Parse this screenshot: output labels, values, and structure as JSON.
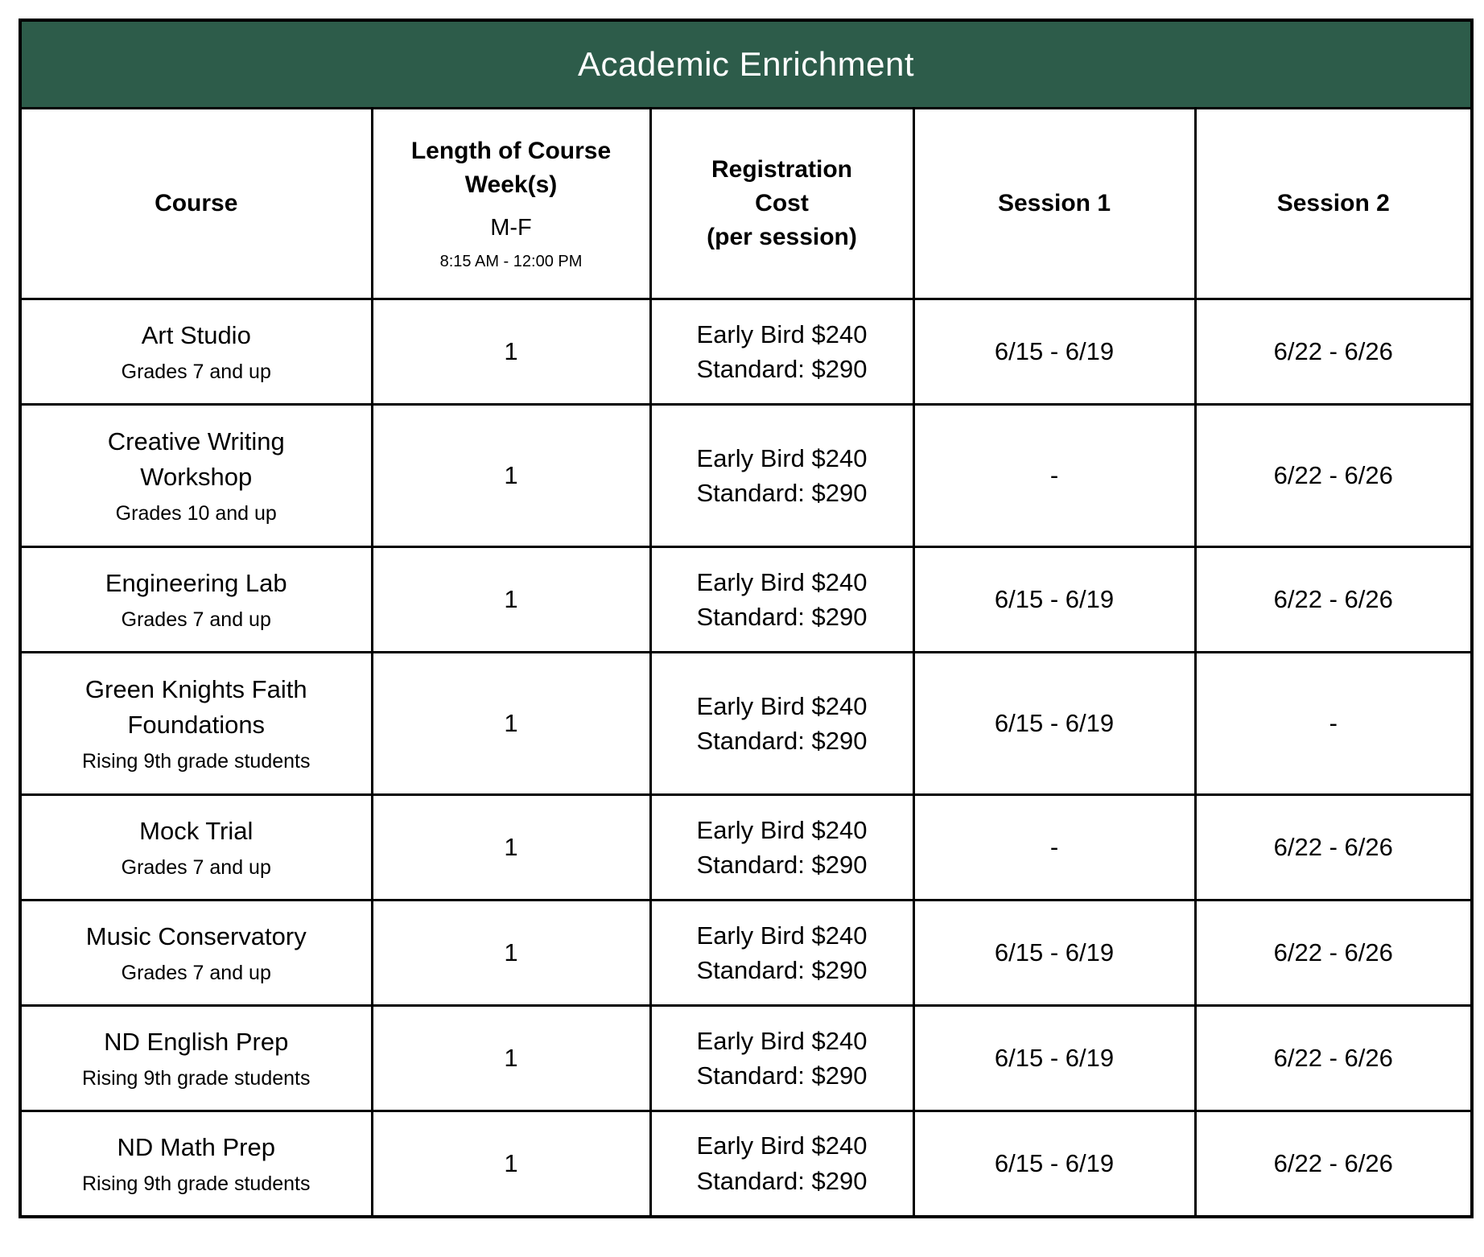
{
  "title_bar": {
    "text": "Academic Enrichment"
  },
  "colors": {
    "title_bg": "#2D5C4A",
    "title_text": "#FFFFFF",
    "border": "#000000",
    "text": "#000000",
    "cell_bg": "#FFFFFF"
  },
  "header": {
    "course": {
      "label": "Course"
    },
    "length": {
      "lines": [
        "Length of Course",
        "Week(s)"
      ],
      "days": "M-F",
      "time": "8:15 AM - 12:00 PM"
    },
    "cost": {
      "lines": [
        "Registration",
        "Cost",
        "(per session)"
      ]
    },
    "session1": {
      "label": "Session 1"
    },
    "session2": {
      "label": "Session 2"
    }
  },
  "rows": [
    {
      "name_lines": [
        "Art Studio"
      ],
      "audience": "Grades 7 and up",
      "weeks": "1",
      "cost_lines": [
        "Early Bird $240",
        "Standard: $290"
      ],
      "session1": "6/15 - 6/19",
      "session2": "6/22 - 6/26"
    },
    {
      "name_lines": [
        "Creative Writing",
        "Workshop"
      ],
      "audience": "Grades 10 and up",
      "weeks": "1",
      "cost_lines": [
        "Early Bird $240",
        "Standard: $290"
      ],
      "session1": "-",
      "session2": "6/22 - 6/26"
    },
    {
      "name_lines": [
        "Engineering Lab"
      ],
      "audience": "Grades 7 and up",
      "weeks": "1",
      "cost_lines": [
        "Early Bird $240",
        "Standard: $290"
      ],
      "session1": "6/15 - 6/19",
      "session2": "6/22 - 6/26"
    },
    {
      "name_lines": [
        "Green Knights Faith",
        "Foundations"
      ],
      "audience": "Rising 9th grade students",
      "weeks": "1",
      "cost_lines": [
        "Early Bird $240",
        "Standard: $290"
      ],
      "session1": "6/15 - 6/19",
      "session2": "-"
    },
    {
      "name_lines": [
        "Mock Trial"
      ],
      "audience": "Grades 7 and up",
      "weeks": "1",
      "cost_lines": [
        "Early Bird $240",
        "Standard: $290"
      ],
      "session1": "-",
      "session2": "6/22 - 6/26"
    },
    {
      "name_lines": [
        "Music Conservatory"
      ],
      "audience": "Grades 7 and up",
      "weeks": "1",
      "cost_lines": [
        "Early Bird $240",
        "Standard: $290"
      ],
      "session1": "6/15 - 6/19",
      "session2": "6/22 - 6/26"
    },
    {
      "name_lines": [
        "ND English Prep"
      ],
      "audience": "Rising 9th grade students",
      "weeks": "1",
      "cost_lines": [
        "Early Bird $240",
        "Standard: $290"
      ],
      "session1": "6/15 - 6/19",
      "session2": "6/22 - 6/26"
    },
    {
      "name_lines": [
        "ND Math Prep"
      ],
      "audience": "Rising 9th grade students",
      "weeks": "1",
      "cost_lines": [
        "Early Bird $240",
        "Standard: $290"
      ],
      "session1": "6/15 - 6/19",
      "session2": "6/22 - 6/26"
    }
  ]
}
